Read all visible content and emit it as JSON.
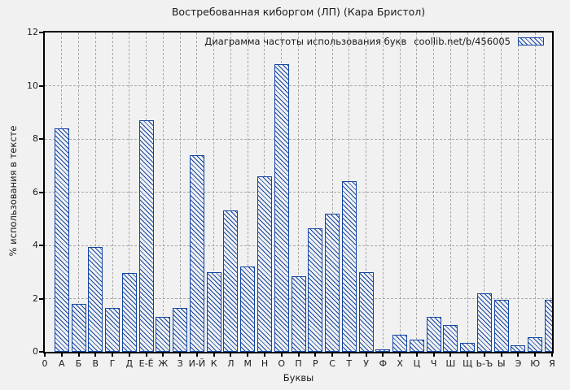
{
  "figure": {
    "background_color": "#f1f1f1"
  },
  "legend": {
    "label": "Диаграмма частоты использования букв",
    "source": "coollib.net/b/456005"
  },
  "chart_data": {
    "type": "bar",
    "title": "Востребованная киборгом (ЛП) (Кара Бристол)",
    "xlabel": "Буквы",
    "ylabel": "% использования в тексте",
    "legend_entry": "Диаграмма частоты использования букв  coollib.net/b/456005",
    "legend_position": "top-right-inside",
    "grid": true,
    "ylim": [
      0,
      12
    ],
    "yticks": [
      0,
      2,
      4,
      6,
      8,
      10,
      12
    ],
    "x_origin_label": "0",
    "bar_color": "#1245a3",
    "grid_color": "#a9a9a9",
    "hatch": "diagonal-backslash",
    "categories": [
      "А",
      "Б",
      "В",
      "Г",
      "Д",
      "Е-Ё",
      "Ж",
      "З",
      "И-Й",
      "К",
      "Л",
      "М",
      "Н",
      "О",
      "П",
      "Р",
      "С",
      "Т",
      "У",
      "Ф",
      "Х",
      "Ц",
      "Ч",
      "Ш",
      "Щ",
      "Ь-Ъ",
      "Ы",
      "Э",
      "Ю",
      "Я"
    ],
    "values": [
      8.4,
      1.8,
      3.95,
      1.65,
      2.95,
      8.7,
      1.3,
      1.65,
      7.4,
      3.0,
      5.3,
      3.2,
      6.6,
      10.8,
      2.85,
      4.65,
      5.2,
      6.4,
      3.0,
      0.1,
      0.65,
      0.45,
      1.3,
      1.0,
      0.35,
      2.2,
      1.95,
      0.25,
      0.55,
      1.95
    ]
  }
}
